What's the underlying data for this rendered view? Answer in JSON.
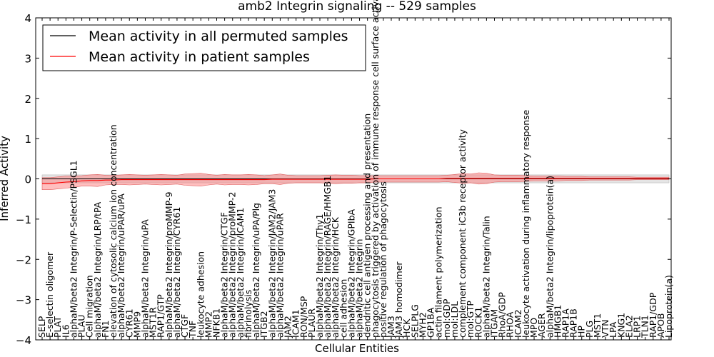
{
  "chart_data": {
    "type": "line",
    "title": "amb2 Integrin signaling -- 529 samples",
    "xlabel": "Cellular Entities",
    "ylabel": "Inferred Activity",
    "ylim": [
      -4,
      4
    ],
    "yticks": [
      -4,
      -3,
      -2,
      -1,
      0,
      1,
      2,
      3,
      4
    ],
    "legend_position": "top-left",
    "categories": [
      "SELP",
      "E-selectin oligomer",
      "PLAT",
      "IL6",
      "alphaM/beta2 Integrin/P-Selectin/PSGL1",
      "PLAU",
      "Cell migration",
      "alphaM/beta2 Integrin/LRP/tPA",
      "FN1",
      "elevation of cytosolic calcium ion concentration",
      "alphaM/beta2 Integrin/uPAR/uPA",
      "CYR61",
      "MMP9",
      "alphaM/beta2 Integrin/uPA",
      "MST1R",
      "RAP1/GTP",
      "alphaM/beta2 Integrin/proMMP-9",
      "alphaM/beta2 Integrin/CYR61",
      "CTGF",
      "TNF",
      "leukocyte adhesion",
      "MMP2",
      "NFKB1",
      "alphaM/beta2 Integrin/CTGF",
      "alphaM/beta2 Integrin/proMMP-2",
      "alphaM/beta2 Integrin/ICAM1",
      "fibrinolysis",
      "alphaM/beta2 Integrin/uPA/Plg",
      "ITGB2",
      "alphaM/beta2 Integrin/JAM2/JAM3",
      "alphaM/beta2 Integrin/uPAR",
      "JAM2",
      "ICAM1",
      "RON/MSP",
      "PLAUR",
      "alphaM/beta2 Integrin/Thy1",
      "alphaM/beta2 Integrin/RAGE/HMGB1",
      "alphaM/beta2 Integrin/HCK",
      "cell adhesion",
      "alphaM/beta2 Integrin/GPIbA",
      "alphaM/beta2 Integrin",
      "dendritic cell antigen processing and presentation",
      "phagocytosis triggered by activation of immune response cell surface activating receptor",
      "positive regulation of phagocytosis",
      "JAM3",
      "JAM3 homodimer",
      "HCK",
      "SELPLG",
      "MYH2",
      "GP1BA",
      "actin filament polymerization",
      "mol:GDP",
      "mol:LDL",
      "complement component iC3b receptor activity",
      "mol:GTP",
      "ROCK1",
      "alphaM/beta2 Integrin/Talin",
      "ITGAM",
      "RhoA/GDP",
      "RHOA",
      "ICAM2",
      "leukocyte activation during inflammatory response",
      "MPO",
      "AGER",
      "alphaM/beta2 Integrin/lipoprotein(a)",
      "HMGB1",
      "RAP1A",
      "RAP1B",
      "HP",
      "PLG",
      "MST1",
      "VTN",
      "LPA",
      "KNG1",
      "ELA2",
      "LRP1",
      "TLN1",
      "RAP1/GDP",
      "APOB",
      "Lipoprotein(a)"
    ],
    "series": [
      {
        "name": "Mean activity in all permuted samples",
        "color": "#000000",
        "values": [
          0.0,
          0.0,
          0.0,
          0.0,
          0.0,
          0.0,
          0.0,
          0.0,
          0.0,
          0.0,
          0.0,
          0.0,
          0.0,
          0.0,
          0.0,
          0.0,
          0.0,
          0.0,
          0.0,
          0.0,
          0.0,
          0.0,
          0.0,
          0.0,
          0.0,
          0.0,
          0.0,
          0.0,
          0.0,
          0.0,
          0.0,
          0.0,
          0.0,
          0.0,
          0.0,
          0.0,
          0.0,
          0.0,
          0.0,
          0.0,
          0.0,
          0.0,
          0.0,
          0.0,
          0.0,
          0.0,
          0.0,
          0.0,
          0.0,
          0.0,
          0.0,
          0.0,
          0.0,
          0.0,
          0.0,
          0.0,
          0.0,
          0.0,
          0.0,
          0.0,
          0.0,
          0.0,
          0.0,
          0.0,
          0.0,
          0.0,
          0.0,
          0.0,
          0.0,
          0.0,
          0.0,
          0.0,
          0.0,
          0.0,
          0.0,
          0.0,
          0.0,
          0.0,
          0.0,
          0.0
        ],
        "band_half_width": [
          0.1,
          0.1,
          0.1,
          0.1,
          0.1,
          0.1,
          0.1,
          0.1,
          0.1,
          0.1,
          0.1,
          0.1,
          0.1,
          0.1,
          0.1,
          0.1,
          0.1,
          0.1,
          0.1,
          0.1,
          0.1,
          0.1,
          0.1,
          0.1,
          0.1,
          0.1,
          0.1,
          0.1,
          0.1,
          0.1,
          0.1,
          0.1,
          0.1,
          0.1,
          0.1,
          0.1,
          0.1,
          0.1,
          0.1,
          0.1,
          0.1,
          0.1,
          0.1,
          0.1,
          0.1,
          0.1,
          0.1,
          0.1,
          0.1,
          0.1,
          0.1,
          0.1,
          0.1,
          0.1,
          0.1,
          0.1,
          0.1,
          0.1,
          0.1,
          0.1,
          0.1,
          0.1,
          0.1,
          0.1,
          0.1,
          0.1,
          0.1,
          0.1,
          0.1,
          0.1,
          0.1,
          0.1,
          0.1,
          0.1,
          0.1,
          0.1,
          0.1,
          0.1,
          0.1,
          0.1
        ]
      },
      {
        "name": "Mean activity in patient samples",
        "color": "#ff0000",
        "values": [
          -0.12,
          -0.12,
          -0.1,
          -0.08,
          -0.07,
          -0.05,
          -0.04,
          -0.04,
          -0.03,
          -0.03,
          -0.02,
          -0.02,
          -0.02,
          -0.02,
          -0.02,
          -0.02,
          -0.02,
          -0.02,
          -0.02,
          -0.02,
          -0.02,
          -0.02,
          -0.02,
          -0.02,
          -0.02,
          -0.02,
          -0.02,
          -0.02,
          -0.02,
          -0.01,
          -0.01,
          -0.01,
          -0.01,
          -0.01,
          -0.01,
          -0.01,
          -0.01,
          -0.01,
          -0.01,
          -0.01,
          -0.01,
          -0.01,
          0.0,
          0.0,
          0.0,
          0.0,
          0.0,
          0.0,
          0.0,
          0.0,
          0.0,
          0.01,
          0.01,
          0.01,
          0.01,
          0.01,
          0.01,
          0.01,
          0.01,
          0.01,
          0.01,
          0.01,
          0.01,
          0.01,
          0.01,
          0.01,
          0.01,
          0.01,
          0.01,
          0.01,
          0.01,
          0.01,
          0.01,
          0.01,
          0.01,
          0.01,
          0.01,
          0.01,
          0.01,
          0.01
        ],
        "band_half_width": [
          0.15,
          0.15,
          0.15,
          0.15,
          0.14,
          0.13,
          0.14,
          0.15,
          0.12,
          0.11,
          0.12,
          0.13,
          0.12,
          0.11,
          0.12,
          0.13,
          0.12,
          0.11,
          0.14,
          0.15,
          0.16,
          0.13,
          0.11,
          0.13,
          0.12,
          0.12,
          0.13,
          0.12,
          0.1,
          0.11,
          0.13,
          0.1,
          0.09,
          0.09,
          0.09,
          0.09,
          0.1,
          0.11,
          0.1,
          0.1,
          0.09,
          0.09,
          0.08,
          0.08,
          0.08,
          0.08,
          0.08,
          0.08,
          0.08,
          0.08,
          0.08,
          0.08,
          0.1,
          0.12,
          0.11,
          0.14,
          0.13,
          0.09,
          0.08,
          0.08,
          0.08,
          0.07,
          0.06,
          0.06,
          0.06,
          0.06,
          0.05,
          0.05,
          0.05,
          0.04,
          0.04,
          0.04,
          0.04,
          0.04,
          0.04,
          0.03,
          0.03,
          0.03,
          0.03,
          0.03
        ]
      }
    ]
  }
}
